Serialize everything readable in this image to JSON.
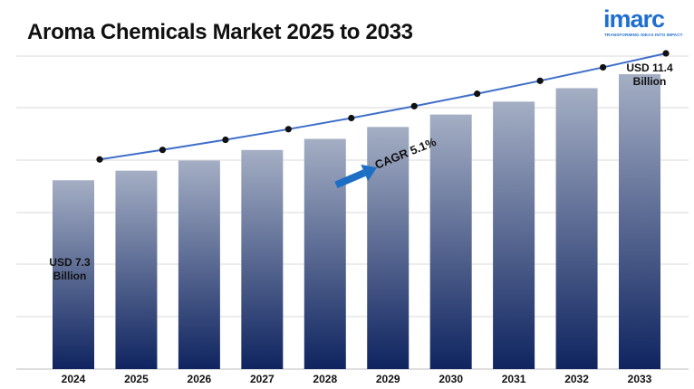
{
  "page": {
    "title": "Aroma Chemicals Market 2025 to 2033"
  },
  "logo": {
    "word": "imarc",
    "tagline": "TRANSFORMING IDEAS INTO IMPACT"
  },
  "colors": {
    "bar_top": "#a4aec4",
    "bar_bottom": "#0f2460",
    "line": "#3f6ec9",
    "marker": "#111111",
    "arrow": "#1c6fc4",
    "grid": "#d8d8d8",
    "brand": "#1f6fd0"
  },
  "chart_data": {
    "type": "bar",
    "categories": [
      "2024",
      "2025",
      "2026",
      "2027",
      "2028",
      "2029",
      "2030",
      "2031",
      "2032",
      "2033"
    ],
    "values": [
      7.3,
      7.67,
      8.06,
      8.47,
      8.9,
      9.36,
      9.84,
      10.34,
      10.86,
      11.4
    ],
    "trend_line": [
      7.3,
      7.67,
      8.06,
      8.47,
      8.9,
      9.36,
      9.84,
      10.34,
      10.86,
      11.4
    ],
    "ylim": [
      0,
      12.1
    ],
    "grid": true,
    "annotations": {
      "start_label": [
        "USD 7.3",
        "Billion"
      ],
      "end_label": [
        "USD 11.4",
        "Billion"
      ],
      "cagr_label": "CAGR 5.1%"
    }
  }
}
